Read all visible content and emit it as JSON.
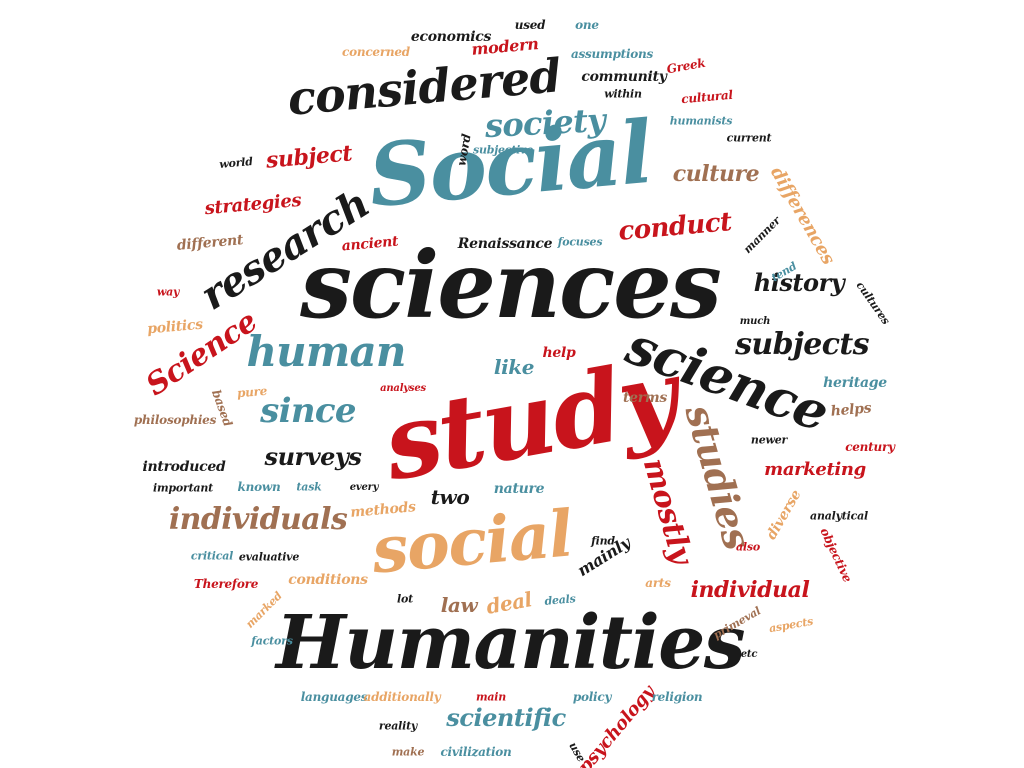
{
  "colors": {
    "black": "#1a1a1a",
    "teal": "#4a8fa0",
    "red": "#c8141c",
    "orange": "#e8a565",
    "brown": "#a07052"
  },
  "words": [
    {
      "text": "study",
      "color": "red"
    },
    {
      "text": "sciences",
      "color": "black"
    },
    {
      "text": "Social",
      "color": "teal"
    },
    {
      "text": "Humanities",
      "color": "black"
    },
    {
      "text": "social",
      "color": "orange"
    },
    {
      "text": "considered",
      "color": "black"
    },
    {
      "text": "science",
      "color": "black"
    },
    {
      "text": "research",
      "color": "black"
    },
    {
      "text": "human",
      "color": "teal"
    },
    {
      "text": "studies",
      "color": "brown"
    },
    {
      "text": "mostly",
      "color": "red"
    },
    {
      "text": "society",
      "color": "teal"
    },
    {
      "text": "since",
      "color": "teal"
    },
    {
      "text": "Science",
      "color": "red"
    },
    {
      "text": "subjects",
      "color": "black"
    },
    {
      "text": "individuals",
      "color": "brown"
    },
    {
      "text": "surveys",
      "color": "black"
    },
    {
      "text": "history",
      "color": "black"
    },
    {
      "text": "conduct",
      "color": "red"
    },
    {
      "text": "culture",
      "color": "brown"
    },
    {
      "text": "subject",
      "color": "red"
    },
    {
      "text": "strategies",
      "color": "red"
    },
    {
      "text": "differences",
      "color": "orange"
    },
    {
      "text": "individual",
      "color": "red"
    },
    {
      "text": "scientific",
      "color": "teal"
    },
    {
      "text": "like",
      "color": "teal"
    },
    {
      "text": "marketing",
      "color": "red"
    },
    {
      "text": "heritage",
      "color": "teal"
    },
    {
      "text": "law",
      "color": "brown"
    },
    {
      "text": "deal",
      "color": "orange"
    },
    {
      "text": "two",
      "color": "black"
    },
    {
      "text": "diverse",
      "color": "orange"
    },
    {
      "text": "psychology",
      "color": "red"
    },
    {
      "text": "mainly",
      "color": "black"
    },
    {
      "text": "economics",
      "color": "black"
    },
    {
      "text": "modern",
      "color": "red"
    },
    {
      "text": "community",
      "color": "black"
    },
    {
      "text": "assumptions",
      "color": "teal"
    },
    {
      "text": "concerned",
      "color": "orange"
    },
    {
      "text": "used",
      "color": "black"
    },
    {
      "text": "one",
      "color": "teal"
    },
    {
      "text": "Greek",
      "color": "red"
    },
    {
      "text": "cultural",
      "color": "red"
    },
    {
      "text": "within",
      "color": "black"
    },
    {
      "text": "humanists",
      "color": "teal"
    },
    {
      "text": "current",
      "color": "black"
    },
    {
      "text": "word",
      "color": "black"
    },
    {
      "text": "subjective",
      "color": "teal"
    },
    {
      "text": "world",
      "color": "black"
    },
    {
      "text": "different",
      "color": "brown"
    },
    {
      "text": "ancient",
      "color": "red"
    },
    {
      "text": "Renaissance",
      "color": "black"
    },
    {
      "text": "focuses",
      "color": "teal"
    },
    {
      "text": "manner",
      "color": "black"
    },
    {
      "text": "tend",
      "color": "teal"
    },
    {
      "text": "way",
      "color": "red"
    },
    {
      "text": "cultures",
      "color": "black"
    },
    {
      "text": "politics",
      "color": "orange"
    },
    {
      "text": "much",
      "color": "black"
    },
    {
      "text": "help",
      "color": "red"
    },
    {
      "text": "pure",
      "color": "orange"
    },
    {
      "text": "analyses",
      "color": "red"
    },
    {
      "text": "based",
      "color": "brown"
    },
    {
      "text": "philosophies",
      "color": "brown"
    },
    {
      "text": "terms",
      "color": "brown"
    },
    {
      "text": "helps",
      "color": "brown"
    },
    {
      "text": "newer",
      "color": "black"
    },
    {
      "text": "century",
      "color": "red"
    },
    {
      "text": "introduced",
      "color": "black"
    },
    {
      "text": "important",
      "color": "black"
    },
    {
      "text": "known",
      "color": "teal"
    },
    {
      "text": "task",
      "color": "teal"
    },
    {
      "text": "every",
      "color": "black"
    },
    {
      "text": "nature",
      "color": "teal"
    },
    {
      "text": "methods",
      "color": "orange"
    },
    {
      "text": "analytical",
      "color": "black"
    },
    {
      "text": "critical",
      "color": "teal"
    },
    {
      "text": "evaluative",
      "color": "black"
    },
    {
      "text": "find",
      "color": "black"
    },
    {
      "text": "also",
      "color": "red"
    },
    {
      "text": "objective",
      "color": "red"
    },
    {
      "text": "Therefore",
      "color": "red"
    },
    {
      "text": "conditions",
      "color": "orange"
    },
    {
      "text": "arts",
      "color": "orange"
    },
    {
      "text": "lot",
      "color": "black"
    },
    {
      "text": "deals",
      "color": "teal"
    },
    {
      "text": "marked",
      "color": "orange"
    },
    {
      "text": "primeval",
      "color": "brown"
    },
    {
      "text": "aspects",
      "color": "orange"
    },
    {
      "text": "factors",
      "color": "teal"
    },
    {
      "text": "etc",
      "color": "black"
    },
    {
      "text": "languages",
      "color": "teal"
    },
    {
      "text": "additionally",
      "color": "orange"
    },
    {
      "text": "main",
      "color": "red"
    },
    {
      "text": "policy",
      "color": "teal"
    },
    {
      "text": "religion",
      "color": "teal"
    },
    {
      "text": "reality",
      "color": "black"
    },
    {
      "text": "make",
      "color": "brown"
    },
    {
      "text": "civilization",
      "color": "teal"
    },
    {
      "text": "use",
      "color": "black"
    }
  ]
}
